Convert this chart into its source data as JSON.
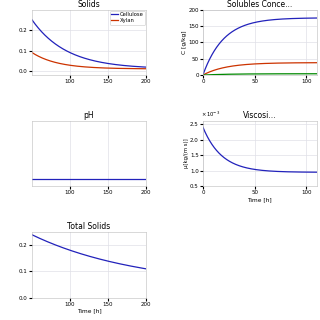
{
  "title_solids": "Solids",
  "title_solubles": "Solubles Conce...",
  "title_ph": "pH",
  "title_viscosity": "Viscosi...",
  "title_total_solids": "Total Solids",
  "xlabel_time": "Time [h]",
  "ylabel_solubles": "C [g/kg]",
  "ylabel_viscosity": "μ[kg/(m s)]",
  "legend_cellulose": "Cellulose",
  "legend_xylan": "Xylan",
  "color_cellulose": "#2222bb",
  "color_xylan": "#cc3300",
  "color_green": "#008800",
  "color_blue": "#2222bb",
  "bg_color": "#ffffff",
  "grid_color": "#e0e0e8"
}
